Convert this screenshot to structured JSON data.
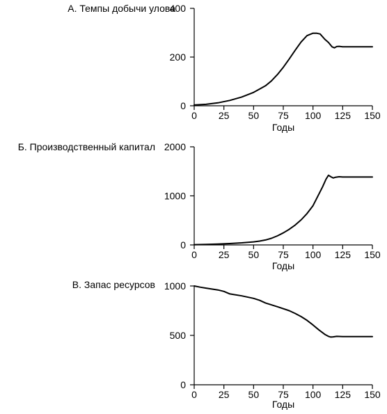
{
  "chart_data": [
    {
      "id": "A",
      "type": "line",
      "title": "А. Темпы добычи улова",
      "xlabel": "Годы",
      "ylabel": "",
      "xlim": [
        0,
        150
      ],
      "ylim": [
        0,
        400
      ],
      "x_ticks": [
        0,
        25,
        50,
        75,
        100,
        125,
        150
      ],
      "y_ticks": [
        0,
        200,
        400
      ],
      "grid": false,
      "series": [
        {
          "x": [
            0,
            10,
            20,
            30,
            40,
            50,
            60,
            65,
            70,
            75,
            80,
            85,
            90,
            95,
            100,
            103,
            106,
            110,
            113,
            116,
            118,
            120,
            122,
            125,
            130,
            140,
            150
          ],
          "values": [
            3,
            6,
            12,
            22,
            36,
            55,
            82,
            102,
            128,
            158,
            192,
            228,
            262,
            288,
            298,
            298,
            295,
            273,
            260,
            242,
            238,
            243,
            244,
            242,
            242,
            242,
            242
          ]
        }
      ]
    },
    {
      "id": "B",
      "type": "line",
      "title": "Б. Производственный капитал",
      "xlabel": "Годы",
      "ylabel": "",
      "xlim": [
        0,
        150
      ],
      "ylim": [
        0,
        2000
      ],
      "x_ticks": [
        0,
        25,
        50,
        75,
        100,
        125,
        150
      ],
      "y_ticks": [
        0,
        1000,
        2000
      ],
      "grid": false,
      "series": [
        {
          "x": [
            0,
            10,
            20,
            30,
            40,
            50,
            55,
            60,
            65,
            70,
            75,
            80,
            85,
            90,
            95,
            100,
            104,
            108,
            111,
            113,
            115,
            117,
            119,
            122,
            125,
            130,
            140,
            150
          ],
          "values": [
            5,
            10,
            18,
            28,
            42,
            62,
            78,
            100,
            135,
            185,
            245,
            318,
            405,
            510,
            640,
            800,
            990,
            1180,
            1340,
            1420,
            1390,
            1365,
            1380,
            1390,
            1385,
            1385,
            1385,
            1385
          ]
        }
      ]
    },
    {
      "id": "C",
      "type": "line",
      "title": "В. Запас ресурсов",
      "xlabel": "Годы",
      "ylabel": "",
      "xlim": [
        0,
        150
      ],
      "ylim": [
        0,
        1000
      ],
      "x_ticks": [
        0,
        25,
        50,
        75,
        100,
        125,
        150
      ],
      "y_ticks": [
        0,
        500,
        1000
      ],
      "grid": false,
      "series": [
        {
          "x": [
            0,
            5,
            10,
            20,
            25,
            30,
            40,
            50,
            55,
            60,
            70,
            80,
            85,
            90,
            95,
            100,
            105,
            110,
            113,
            115,
            117,
            120,
            125,
            130,
            140,
            150
          ],
          "values": [
            1000,
            988,
            978,
            960,
            945,
            920,
            900,
            875,
            855,
            828,
            790,
            750,
            722,
            690,
            652,
            605,
            555,
            510,
            490,
            483,
            485,
            490,
            488,
            487,
            487,
            488
          ]
        }
      ]
    }
  ]
}
